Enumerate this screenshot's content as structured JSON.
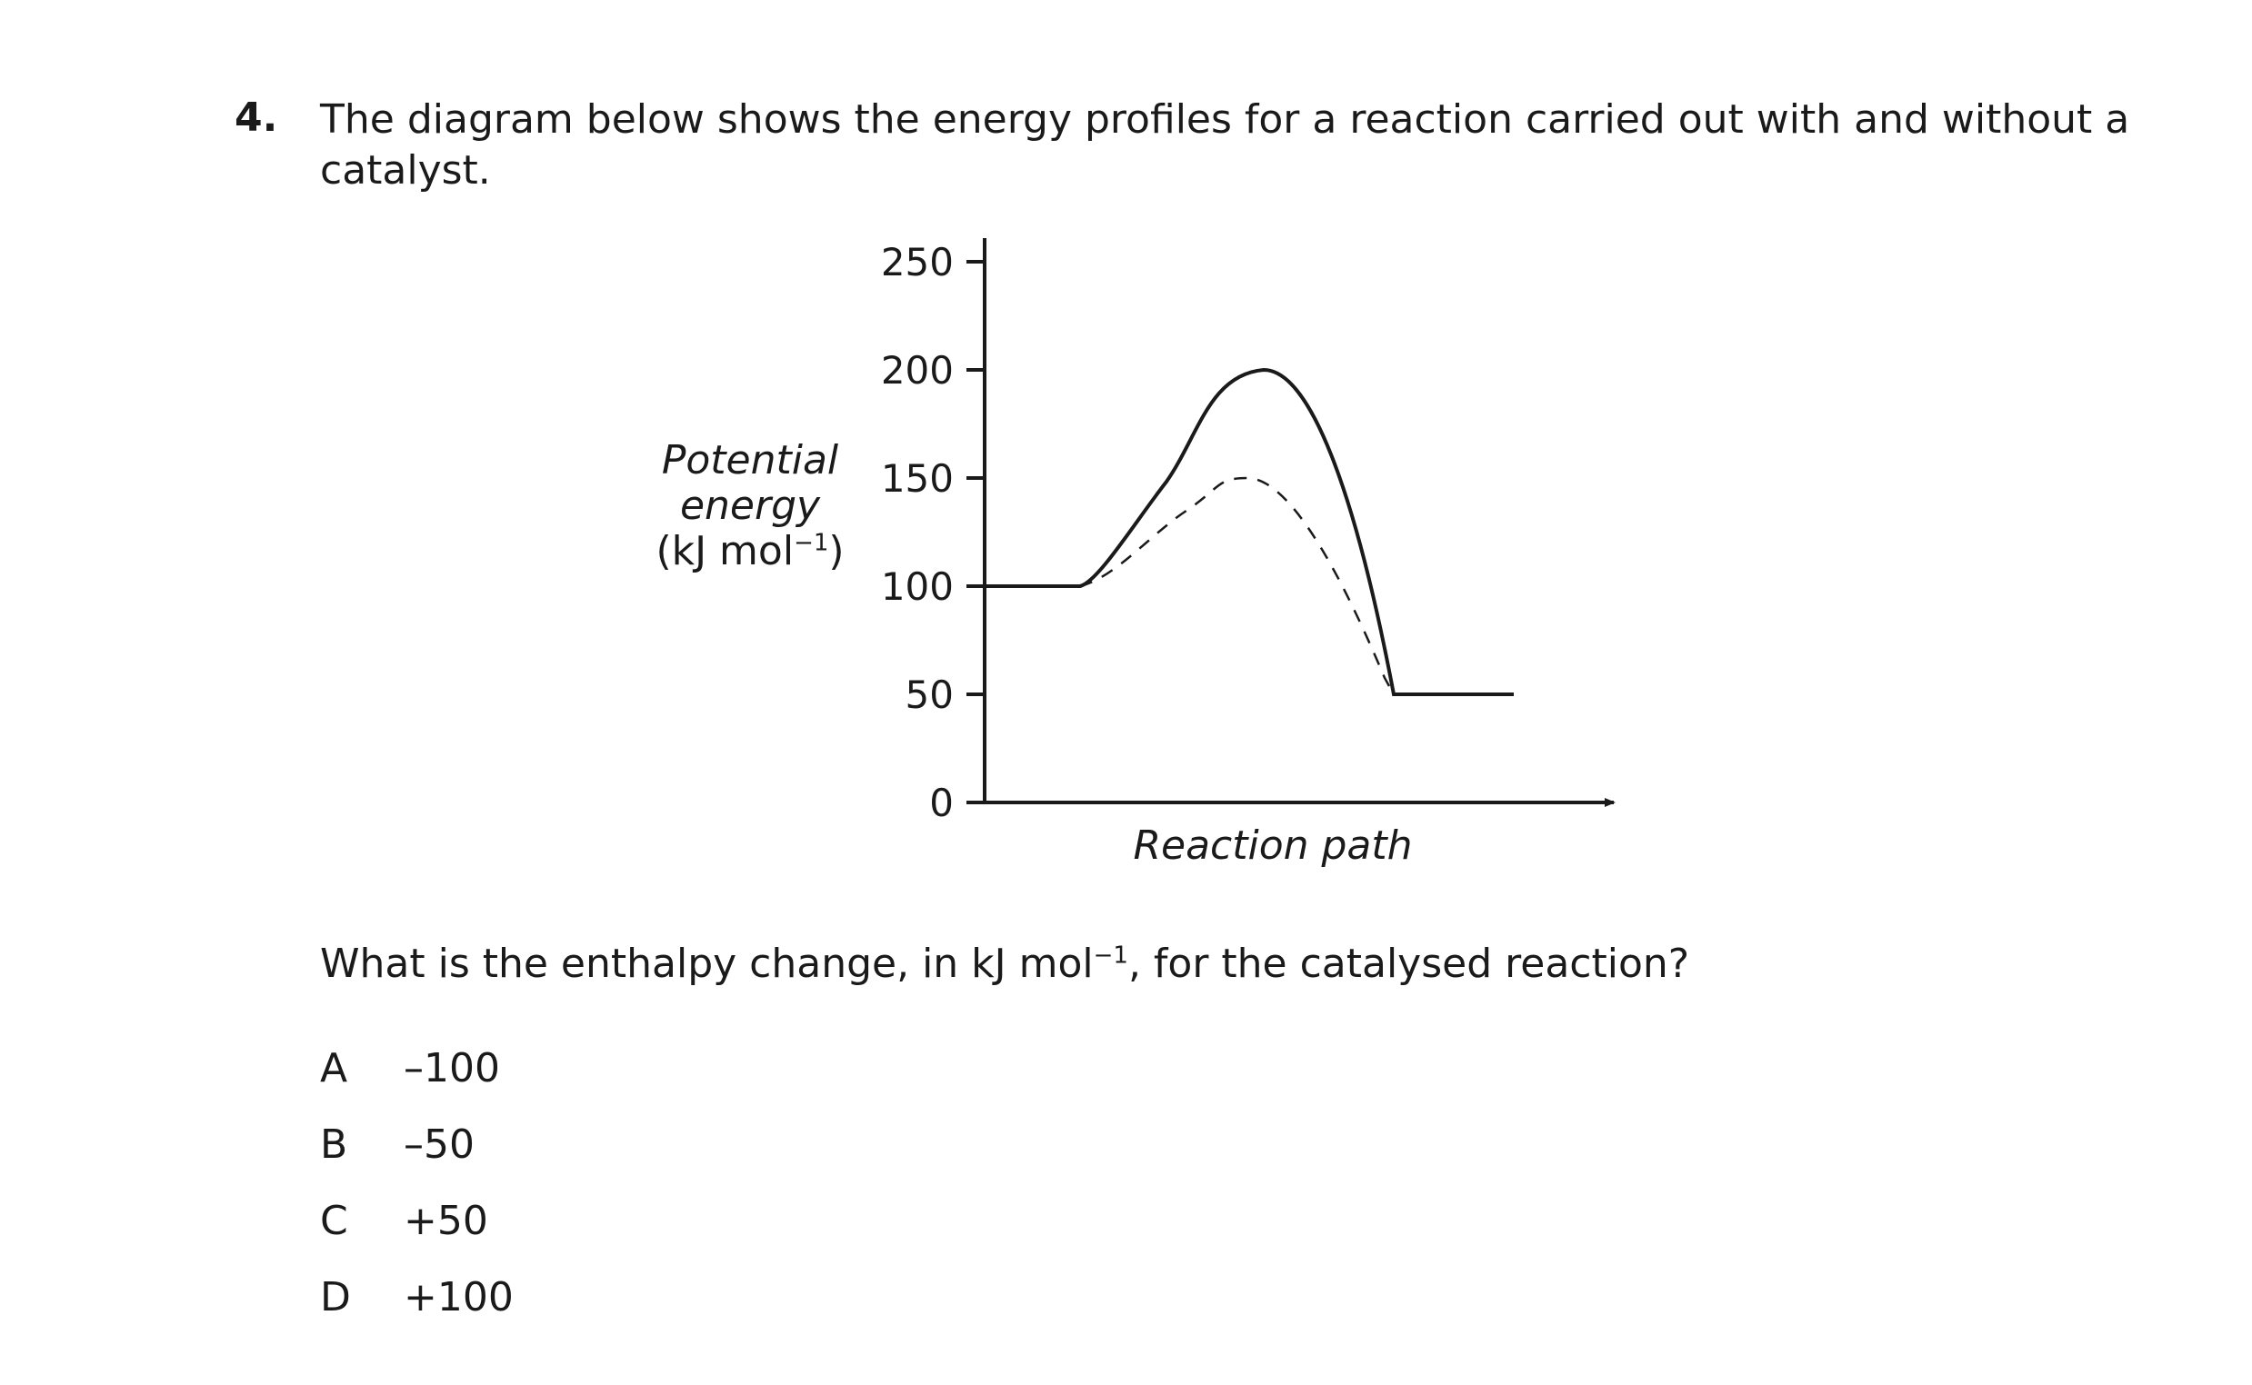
{
  "question": {
    "number": "4.",
    "line1": "The diagram below shows the energy profiles for a reaction carried out with and without a",
    "line2": "catalyst.",
    "prompt_before_sup": "What is the enthalpy change, in kJ mol",
    "prompt_sup": "−1",
    "prompt_after_sup": ", for the catalysed reaction?"
  },
  "options": [
    {
      "letter": "A",
      "value": "–100"
    },
    {
      "letter": "B",
      "value": "–50"
    },
    {
      "letter": "C",
      "value": "+50"
    },
    {
      "letter": "D",
      "value": "+100"
    }
  ],
  "chart_data": {
    "type": "line",
    "title": "",
    "ylabel_line1": "Potential",
    "ylabel_line2": "energy",
    "ylabel_unit": "(kJ mol",
    "ylabel_unit_sup": "−1",
    "ylabel_unit_close": ")",
    "xlabel": "Reaction path",
    "ylim": [
      0,
      250
    ],
    "yticks": [
      "0",
      "50",
      "100",
      "150",
      "200",
      "250"
    ],
    "grid": false,
    "legend": "none",
    "series": [
      {
        "style": "solid",
        "reactant_energy": 100,
        "peak_energy": 200,
        "product_energy": 50
      },
      {
        "style": "dashed",
        "reactant_energy": 100,
        "peak_energy": 150,
        "product_energy": 50
      }
    ]
  }
}
